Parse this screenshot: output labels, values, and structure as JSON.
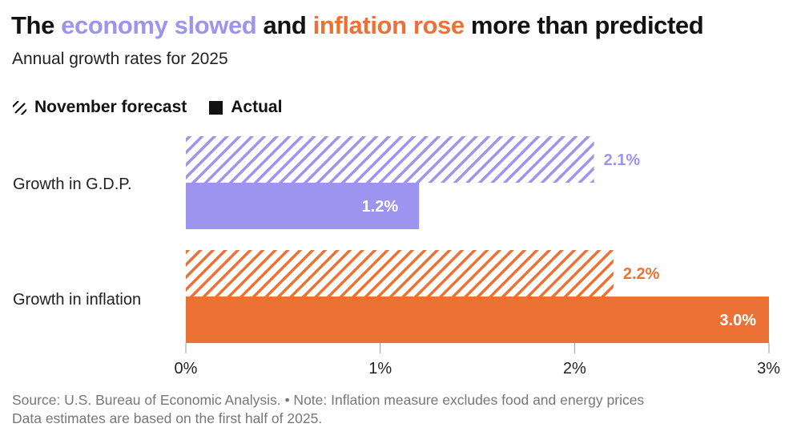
{
  "title": {
    "part1": "The ",
    "highlight1": "economy slowed",
    "part2": " and ",
    "highlight2": "inflation rose",
    "part3": " more than predicted",
    "highlight1_color": "#9c94ee",
    "highlight2_color": "#ec7135"
  },
  "subtitle": "Annual growth rates for 2025",
  "legend": {
    "forecast": "November forecast",
    "actual": "Actual",
    "forecast_icon": "diagonal-hatch",
    "actual_icon": "solid-square"
  },
  "chart_data": {
    "type": "bar",
    "orientation": "horizontal",
    "categories": [
      "Growth in G.D.P.",
      "Growth in inflation"
    ],
    "series": [
      {
        "name": "November forecast",
        "style": "hatched",
        "values": [
          2.1,
          2.2
        ],
        "labels": [
          "2.1%",
          "2.2%"
        ]
      },
      {
        "name": "Actual",
        "style": "solid",
        "values": [
          1.2,
          3.0
        ],
        "labels": [
          "1.2%",
          "3.0%"
        ]
      }
    ],
    "category_colors": [
      "#9c94ee",
      "#ec7135"
    ],
    "xlim": [
      0,
      3
    ],
    "xticks": [
      0,
      1,
      2,
      3
    ],
    "xtick_labels": [
      "0%",
      "1%",
      "2%",
      "3%"
    ],
    "grid": false
  },
  "source": {
    "line1": "Source: U.S. Bureau of Economic Analysis. • Note: Inflation measure excludes food and energy prices",
    "line2": "Data estimates are based on the first half of 2025."
  }
}
